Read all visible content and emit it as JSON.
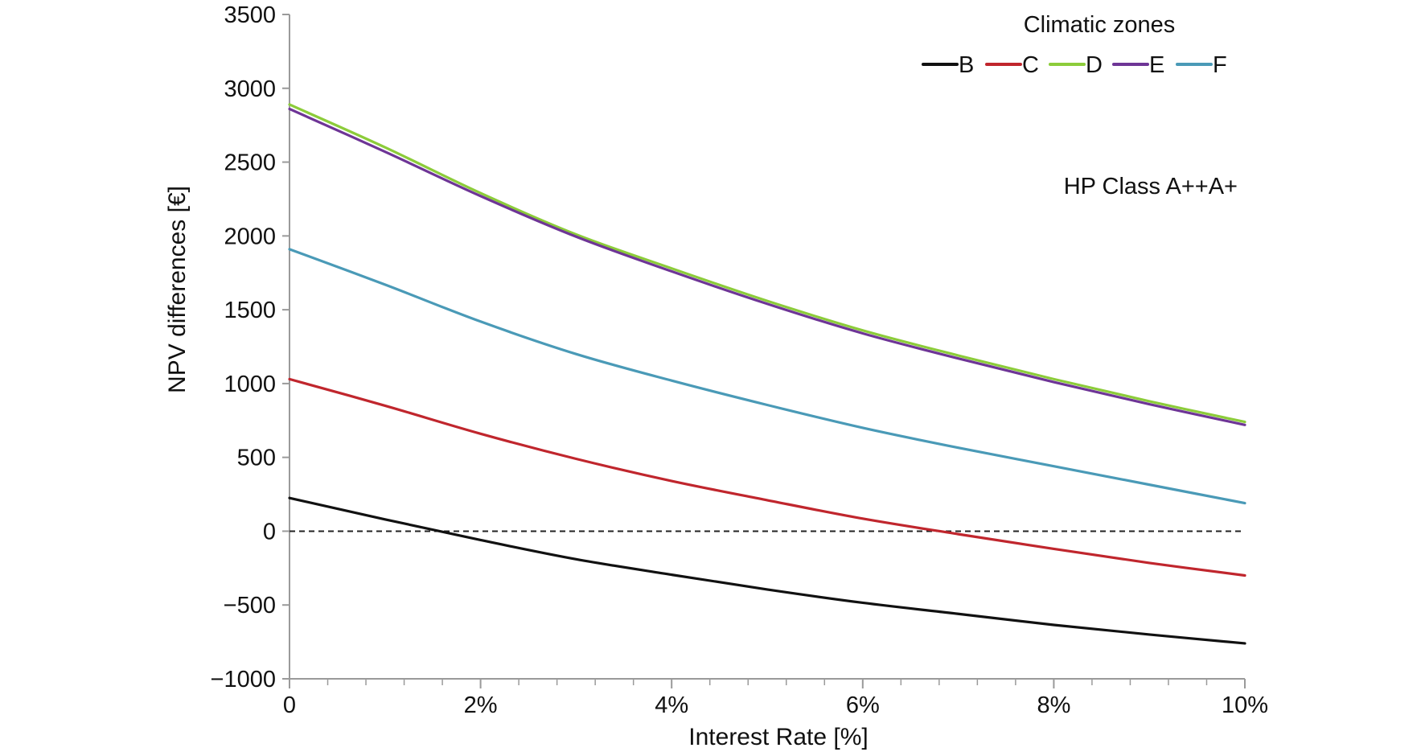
{
  "chart_data": {
    "type": "line",
    "title": "",
    "xlabel": "Interest Rate [%]",
    "ylabel": "NPV differences [€]",
    "xlim": [
      0,
      10
    ],
    "ylim": [
      -1000,
      3500
    ],
    "x_ticks": [
      0,
      2,
      4,
      6,
      8,
      10
    ],
    "x_tick_labels": [
      "0",
      "2%",
      "4%",
      "6%",
      "8%",
      "10%"
    ],
    "y_ticks": [
      -1000,
      -500,
      0,
      500,
      1000,
      1500,
      2000,
      2500,
      3000,
      3500
    ],
    "y_tick_labels": [
      "−1000",
      "−500",
      "0",
      "500",
      "1000",
      "1500",
      "2000",
      "2500",
      "3000",
      "3500"
    ],
    "x_minor_step": 0.4,
    "grid": false,
    "reference_line": {
      "y": 0,
      "style": "dashed"
    },
    "legend": {
      "title": "Climatic zones",
      "position": "top-right"
    },
    "annotation": "HP Class A++A+",
    "x": [
      0,
      1,
      2,
      3,
      4,
      5,
      6,
      7,
      8,
      9,
      10
    ],
    "series": [
      {
        "name": "B",
        "color": "#111111",
        "values": [
          225,
          80,
          -60,
          -190,
          -295,
          -395,
          -485,
          -560,
          -635,
          -700,
          -760
        ]
      },
      {
        "name": "C",
        "color": "#c0262d",
        "values": [
          1030,
          850,
          660,
          490,
          340,
          210,
          85,
          -20,
          -120,
          -215,
          -300
        ]
      },
      {
        "name": "D",
        "color": "#8ccc3a",
        "values": [
          2890,
          2600,
          2290,
          2010,
          1780,
          1560,
          1360,
          1190,
          1030,
          880,
          740
        ]
      },
      {
        "name": "E",
        "color": "#6e3596",
        "values": [
          2860,
          2570,
          2270,
          1995,
          1760,
          1540,
          1340,
          1170,
          1010,
          860,
          720
        ]
      },
      {
        "name": "F",
        "color": "#4a9ab7",
        "values": [
          1910,
          1670,
          1420,
          1200,
          1020,
          855,
          700,
          565,
          440,
          315,
          190
        ]
      }
    ]
  }
}
